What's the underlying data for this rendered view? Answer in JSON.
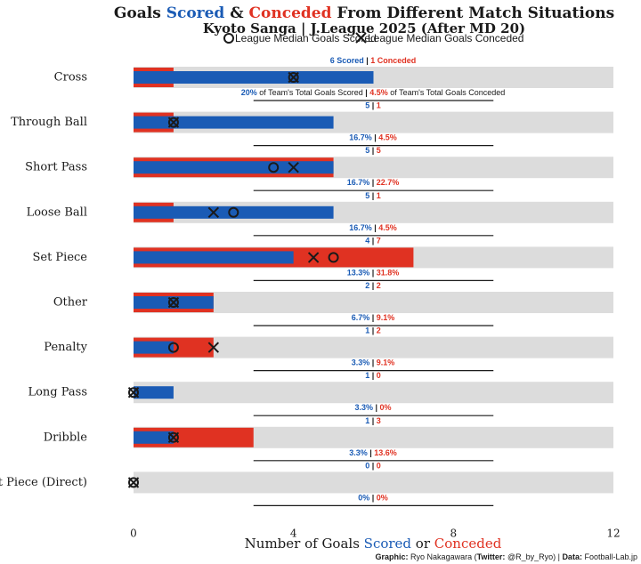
{
  "header": {
    "title_part1": "Goals ",
    "title_scored": "Scored",
    "title_amp": " & ",
    "title_conceded": "Conceded",
    "title_part2": " From Different Match Situations",
    "subtitle": "Kyoto Sanga | J.League 2025 (After MD 20)"
  },
  "legend": {
    "median_scored": "League Median Goals Scored",
    "median_conceded": "League Median Goals Conceded"
  },
  "annotation": {
    "scored_word": "Scored",
    "conceded_word": "Conceded",
    "pct_scored_text": "of Team's Total Goals Scored",
    "pct_conceded_text": "of Team's Total Goals Conceded",
    "sep": " | "
  },
  "axis": {
    "title_part1": "Number of Goals ",
    "title_scored": "Scored",
    "title_or": " or ",
    "title_conceded": "Conceded"
  },
  "caption": {
    "graphic_label": "Graphic:",
    "graphic_value": " Ryo Nakagawara (",
    "twitter_label": "Twitter:",
    "twitter_value": " @R_by_Ryo) | ",
    "data_label": "Data:",
    "data_value": " Football-Lab.jp"
  },
  "colors": {
    "scored": "#1a5bb5",
    "conceded": "#e03222",
    "background_bar": "#dcdcdc",
    "text": "#1a1a1a"
  },
  "chart_data": {
    "type": "bar",
    "orientation": "horizontal",
    "xlim": [
      0,
      12
    ],
    "xticks": [
      0,
      4,
      8,
      12
    ],
    "xlabel": "Number of Goals Scored or Conceded",
    "categories": [
      "Cross",
      "Through Ball",
      "Short Pass",
      "Loose Ball",
      "Set Piece",
      "Other",
      "Penalty",
      "Long Pass",
      "Dribble",
      "Set Piece (Direct)"
    ],
    "series": [
      {
        "name": "Scored",
        "values": [
          6,
          5,
          5,
          5,
          4,
          2,
          1,
          1,
          1,
          0
        ]
      },
      {
        "name": "Conceded",
        "values": [
          1,
          1,
          5,
          1,
          7,
          2,
          2,
          0,
          3,
          0
        ]
      },
      {
        "name": "League Median Goals Scored",
        "values": [
          4,
          1,
          3.5,
          2.5,
          5,
          1,
          1,
          0,
          1,
          0
        ]
      },
      {
        "name": "League Median Goals Conceded",
        "values": [
          4,
          1,
          4,
          2,
          4.5,
          1,
          2,
          0,
          1,
          0
        ]
      }
    ],
    "pct_scored": [
      "20%",
      "16.7%",
      "16.7%",
      "16.7%",
      "13.3%",
      "6.7%",
      "3.3%",
      "3.3%",
      "3.3%",
      "0%"
    ],
    "pct_conceded": [
      "4.5%",
      "4.5%",
      "22.7%",
      "4.5%",
      "31.8%",
      "9.1%",
      "9.1%",
      "0%",
      "13.6%",
      "0%"
    ],
    "grid": false
  }
}
